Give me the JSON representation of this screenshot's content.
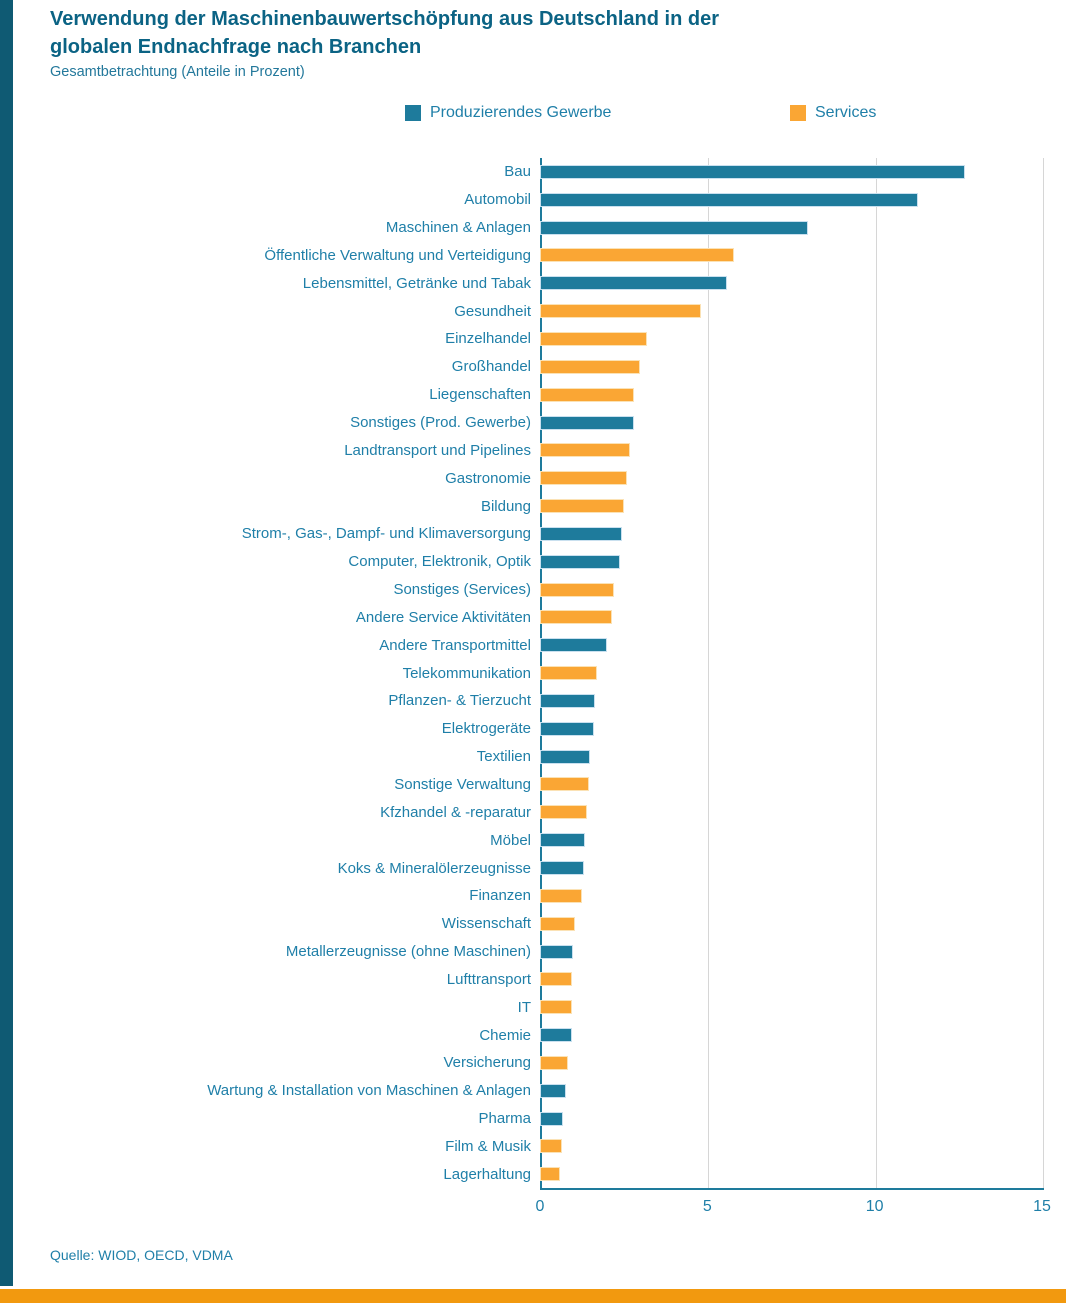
{
  "header": {
    "title_lines": [
      "Verwendung der Maschinenbauwertschöpfung aus Deutschland in der",
      "globalen Endnachfrage nach Branchen"
    ],
    "subtitle": "Gesamtbetrachtung (Anteile in Prozent)"
  },
  "footer": {
    "source": "Quelle: WIOD, OECD, VDMA"
  },
  "accent_colors": {
    "left_stripe": "#0F5A73",
    "bottom_bar": "#F2990F",
    "text_teal": "#1F7FA8",
    "title_teal": "#0B6384"
  },
  "chart_data": {
    "type": "bar",
    "orientation": "horizontal",
    "title": "Verwendung der Maschinenbauwertschöpfung aus Deutschland in der globalen Endnachfrage nach Branchen",
    "subtitle": "Gesamtbetrachtung (Anteile in Prozent)",
    "xlabel": "",
    "ylabel": "",
    "xlim": [
      0,
      15
    ],
    "xticks": [
      0,
      5,
      10,
      15
    ],
    "grid": "vertical",
    "legend_position": "top",
    "series": [
      {
        "name": "Produzierendes Gewerbe",
        "color": "#1E7B9C"
      },
      {
        "name": "Services",
        "color": "#FAA634"
      }
    ],
    "rows": [
      {
        "label": "Bau",
        "series": "Produzierendes Gewerbe",
        "value": 12.7
      },
      {
        "label": "Automobil",
        "series": "Produzierendes Gewerbe",
        "value": 11.3
      },
      {
        "label": "Maschinen & Anlagen",
        "series": "Produzierendes Gewerbe",
        "value": 8.0
      },
      {
        "label": "Öffentliche Verwaltung und Verteidigung",
        "series": "Services",
        "value": 5.8
      },
      {
        "label": "Lebensmittel, Getränke und Tabak",
        "series": "Produzierendes Gewerbe",
        "value": 5.6
      },
      {
        "label": "Gesundheit",
        "series": "Services",
        "value": 4.8
      },
      {
        "label": "Einzelhandel",
        "series": "Services",
        "value": 3.2
      },
      {
        "label": "Großhandel",
        "series": "Services",
        "value": 3.0
      },
      {
        "label": "Liegenschaften",
        "series": "Services",
        "value": 2.8
      },
      {
        "label": "Sonstiges (Prod. Gewerbe)",
        "series": "Produzierendes Gewerbe",
        "value": 2.8
      },
      {
        "label": "Landtransport und Pipelines",
        "series": "Services",
        "value": 2.7
      },
      {
        "label": "Gastronomie",
        "series": "Services",
        "value": 2.6
      },
      {
        "label": "Bildung",
        "series": "Services",
        "value": 2.5
      },
      {
        "label": "Strom-, Gas-, Dampf- und Klimaversorgung",
        "series": "Produzierendes Gewerbe",
        "value": 2.45
      },
      {
        "label": "Computer, Elektronik, Optik",
        "series": "Produzierendes Gewerbe",
        "value": 2.4
      },
      {
        "label": "Sonstiges (Services)",
        "series": "Services",
        "value": 2.2
      },
      {
        "label": "Andere Service Aktivitäten",
        "series": "Services",
        "value": 2.15
      },
      {
        "label": "Andere Transportmittel",
        "series": "Produzierendes Gewerbe",
        "value": 2.0
      },
      {
        "label": "Telekommunikation",
        "series": "Services",
        "value": 1.7
      },
      {
        "label": "Pflanzen- & Tierzucht",
        "series": "Produzierendes Gewerbe",
        "value": 1.65
      },
      {
        "label": "Elektrogeräte",
        "series": "Produzierendes Gewerbe",
        "value": 1.6
      },
      {
        "label": "Textilien",
        "series": "Produzierendes Gewerbe",
        "value": 1.5
      },
      {
        "label": "Sonstige Verwaltung",
        "series": "Services",
        "value": 1.45
      },
      {
        "label": "Kfzhandel & -reparatur",
        "series": "Services",
        "value": 1.4
      },
      {
        "label": "Möbel",
        "series": "Produzierendes Gewerbe",
        "value": 1.35
      },
      {
        "label": "Koks & Mineralölerzeugnisse",
        "series": "Produzierendes Gewerbe",
        "value": 1.3
      },
      {
        "label": "Finanzen",
        "series": "Services",
        "value": 1.25
      },
      {
        "label": "Wissenschaft",
        "series": "Services",
        "value": 1.05
      },
      {
        "label": "Metallerzeugnisse (ohne Maschinen)",
        "series": "Produzierendes Gewerbe",
        "value": 1.0
      },
      {
        "label": "Lufttransport",
        "series": "Services",
        "value": 0.97
      },
      {
        "label": "IT",
        "series": "Services",
        "value": 0.95
      },
      {
        "label": "Chemie",
        "series": "Produzierendes Gewerbe",
        "value": 0.95
      },
      {
        "label": "Versicherung",
        "series": "Services",
        "value": 0.85
      },
      {
        "label": "Wartung & Installation von Maschinen & Anlagen",
        "series": "Produzierendes Gewerbe",
        "value": 0.78
      },
      {
        "label": "Pharma",
        "series": "Produzierendes Gewerbe",
        "value": 0.7
      },
      {
        "label": "Film & Musik",
        "series": "Services",
        "value": 0.65
      },
      {
        "label": "Lagerhaltung",
        "series": "Services",
        "value": 0.6
      }
    ]
  }
}
